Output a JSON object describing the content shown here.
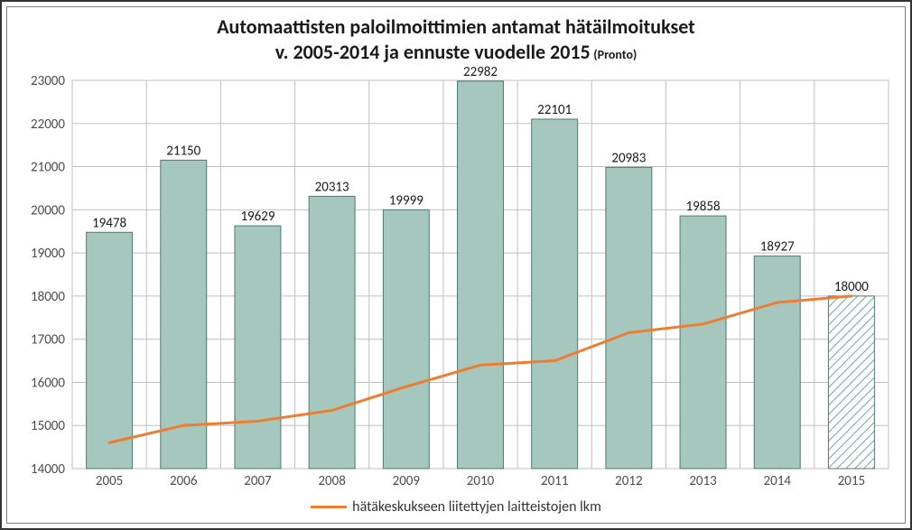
{
  "chart": {
    "type": "bar+line",
    "title_line1": "Automaattisten paloilmoittimien antamat hätäilmoitukset",
    "title_line2": "v. 2005-2014 ja ennuste vuodelle 2015",
    "title_source": "(Pronto)",
    "title_fontsize": 22,
    "source_fontsize": 14,
    "categories": [
      "2005",
      "2006",
      "2007",
      "2008",
      "2009",
      "2010",
      "2011",
      "2012",
      "2013",
      "2014",
      "2015"
    ],
    "bar_values": [
      19478,
      21150,
      19629,
      20313,
      19999,
      22982,
      22101,
      20983,
      19858,
      18927,
      18000
    ],
    "bar_color": "#a6c7be",
    "bar_border_color": "#4f7a6f",
    "forecast_index": 10,
    "forecast_fill": "hatch",
    "forecast_hatch_color": "#6ea89a",
    "line_values": [
      14600,
      15000,
      15100,
      15350,
      15900,
      16400,
      16500,
      17150,
      17350,
      17850,
      18000
    ],
    "line_color": "#ed7d31",
    "line_width": 3,
    "ylim": [
      14000,
      23000
    ],
    "ytick_step": 1000,
    "grid_color": "#bfbfbf",
    "axis_border_color": "#bfbfbf",
    "background_color": "#ffffff",
    "label_fontsize": 15,
    "value_label_fontsize": 15,
    "bar_width_ratio": 0.62,
    "legend_label": "hätäkeskukseen liitettyjen laitteistojen lkm"
  }
}
